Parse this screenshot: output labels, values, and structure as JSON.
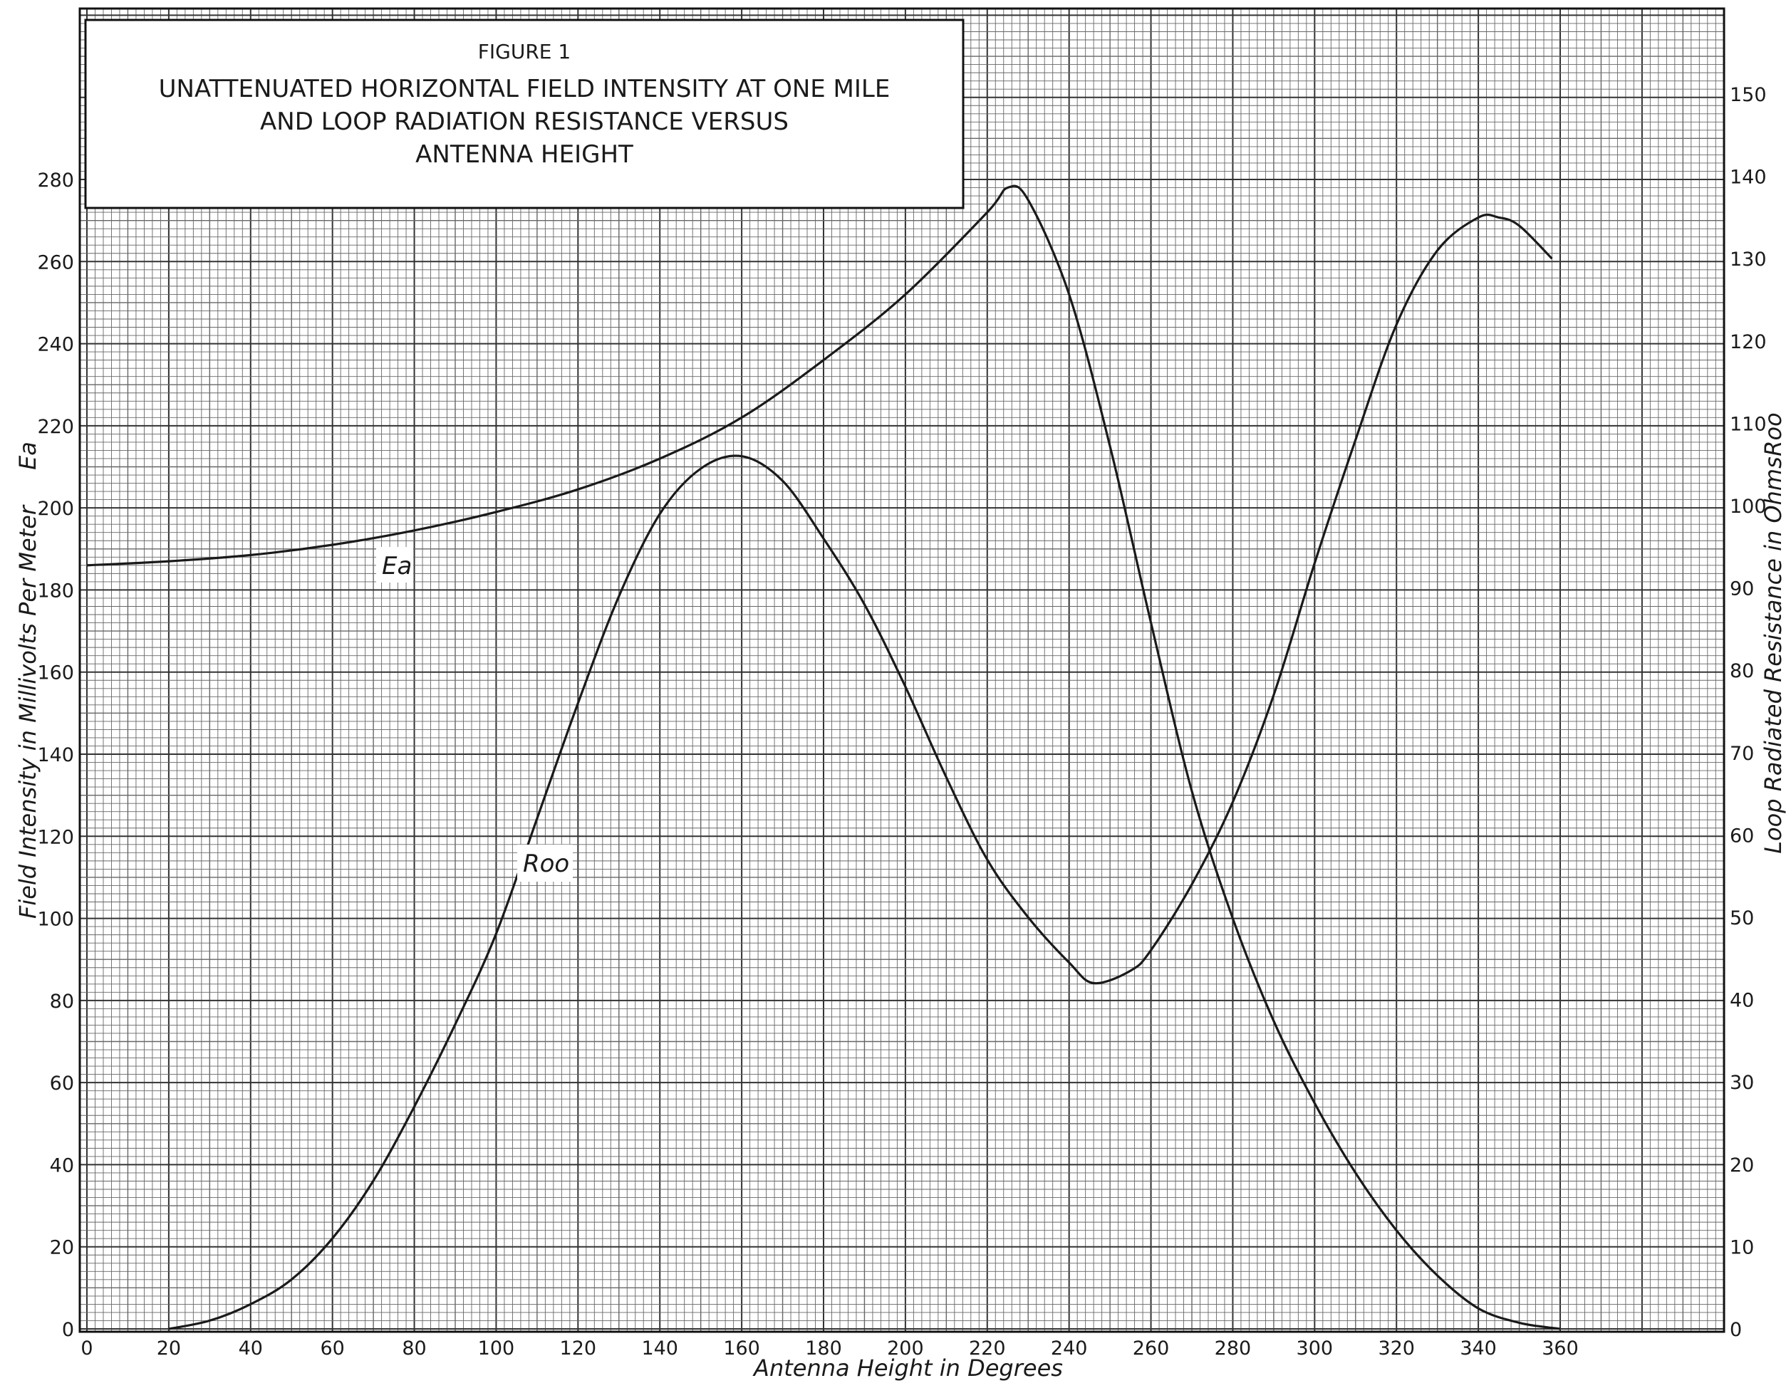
{
  "chart_data": {
    "type": "line",
    "figure_label": "FIGURE 1",
    "title_lines": [
      "UNATTENUATED HORIZONTAL FIELD INTENSITY AT ONE MILE",
      "AND LOOP RADIATION RESISTANCE VERSUS",
      "ANTENNA HEIGHT"
    ],
    "xlabel": "Antenna Height in Degrees",
    "ylabel_left": "Field Intensity in Millivolts Per Meter",
    "ylabel_left_symbol": "Ea",
    "ylabel_right": "Loop Radiated Resistance in Ohms",
    "ylabel_right_symbol": "Roo",
    "xlim": [
      0,
      400
    ],
    "ylim_left": [
      0,
      280
    ],
    "ylim_right": [
      0,
      150
    ],
    "x_ticks": [
      0,
      20,
      40,
      60,
      80,
      100,
      120,
      140,
      160,
      180,
      200,
      220,
      240,
      260,
      280,
      300,
      320,
      340,
      360
    ],
    "y_left_ticks": [
      0,
      20,
      40,
      60,
      80,
      100,
      120,
      140,
      160,
      180,
      200,
      220,
      240,
      260,
      280
    ],
    "y_right_ticks": [
      0,
      10,
      20,
      30,
      40,
      50,
      60,
      70,
      80,
      90,
      100,
      110,
      120,
      130,
      140,
      150
    ],
    "grid": true,
    "series": [
      {
        "name": "Ea",
        "axis": "left",
        "color": "#1a1a1a",
        "x": [
          0,
          20,
          40,
          60,
          80,
          100,
          120,
          140,
          160,
          180,
          200,
          220,
          225,
          230,
          240,
          250,
          260,
          270,
          280,
          290,
          300,
          310,
          320,
          330,
          340,
          350,
          360
        ],
        "y": [
          186,
          187,
          188.5,
          191,
          194.5,
          199,
          204.5,
          212,
          222,
          236,
          252,
          272,
          278,
          275,
          252,
          215,
          172,
          131,
          100,
          75,
          55,
          38,
          24,
          13,
          5,
          1.5,
          0
        ]
      },
      {
        "name": "Roo",
        "axis": "right",
        "color": "#1a1a1a",
        "x": [
          20,
          30,
          40,
          50,
          60,
          70,
          80,
          90,
          100,
          110,
          120,
          130,
          140,
          150,
          160,
          170,
          180,
          190,
          200,
          210,
          220,
          230,
          240,
          246,
          255,
          260,
          270,
          280,
          290,
          300,
          310,
          320,
          330,
          340,
          345,
          350,
          358
        ],
        "y": [
          0,
          1,
          3,
          6,
          11,
          18,
          27,
          37,
          48,
          62,
          76,
          89,
          99,
          104.5,
          106,
          103,
          96,
          88,
          78,
          67,
          57,
          50,
          44.5,
          42,
          43.5,
          46,
          54,
          64,
          77,
          93,
          108,
          122,
          131,
          135,
          135,
          134,
          130
        ]
      }
    ],
    "annotations": [
      {
        "text": "Ea",
        "x": 75,
        "y": 185,
        "axis": "left"
      },
      {
        "text": "Roo",
        "x": 110,
        "y": 115,
        "axis": "left"
      }
    ]
  }
}
